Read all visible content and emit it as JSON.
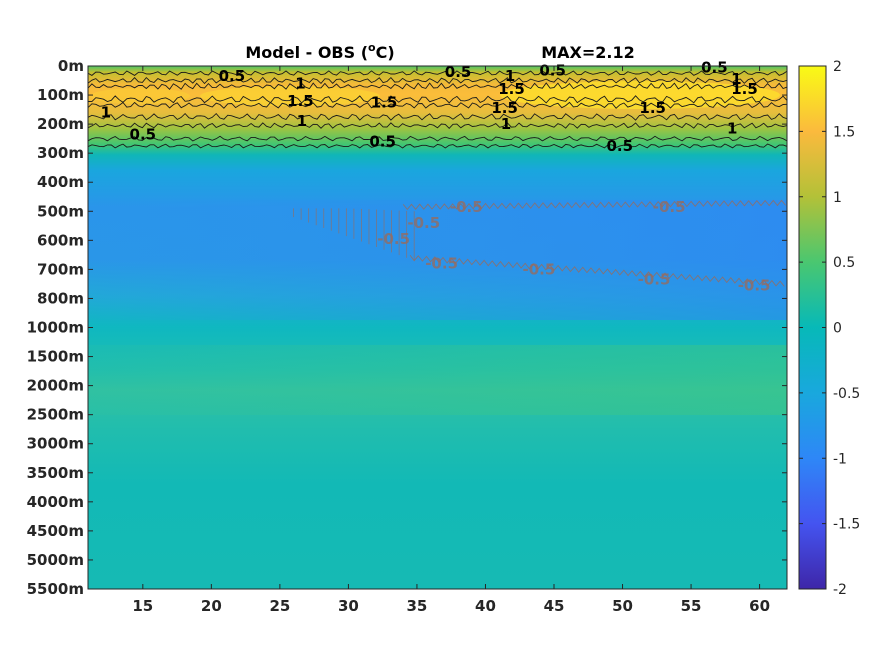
{
  "chart_data": {
    "type": "heatmap",
    "title": "Model - OBS (",
    "title_unit": "o",
    "title_unit_suffix": "C)",
    "annotation": "MAX=2.12",
    "xlabel": "",
    "ylabel": "",
    "x_ticks": [
      15,
      20,
      25,
      30,
      35,
      40,
      45,
      50,
      55,
      60
    ],
    "xlim": [
      11,
      62
    ],
    "y_levels": [
      "0m",
      "100m",
      "200m",
      "300m",
      "400m",
      "500m",
      "600m",
      "700m",
      "800m",
      "1000m",
      "1500m",
      "2000m",
      "2500m",
      "3000m",
      "3500m",
      "4000m",
      "4500m",
      "5000m",
      "5500m"
    ],
    "clim": [
      -2,
      2
    ],
    "colormap": "parula",
    "colorbar_ticks": [
      "2",
      "1.5",
      "1",
      "0.5",
      "0",
      "-0.5",
      "-1",
      "-1.5",
      "-2"
    ],
    "contour_levels": [
      -0.5,
      0.5,
      1,
      1.5
    ],
    "contour_labels_pos": [
      {
        "text": "0.5",
        "x": 21.5,
        "y": 0.35
      },
      {
        "text": "1",
        "x": 26.5,
        "y": 0.6
      },
      {
        "text": "0.5",
        "x": 38,
        "y": 0.2
      },
      {
        "text": "1",
        "x": 41.8,
        "y": 0.35
      },
      {
        "text": "0.5",
        "x": 44.9,
        "y": 0.15
      },
      {
        "text": "0.5",
        "x": 56.7,
        "y": 0.05
      },
      {
        "text": "1",
        "x": 58.3,
        "y": 0.45
      },
      {
        "text": "1.5",
        "x": 41.9,
        "y": 0.8
      },
      {
        "text": "1.5",
        "x": 58.9,
        "y": 0.8
      },
      {
        "text": "1.5",
        "x": 26.5,
        "y": 1.2
      },
      {
        "text": "1.5",
        "x": 32.6,
        "y": 1.25
      },
      {
        "text": "1.5",
        "x": 41.4,
        "y": 1.45
      },
      {
        "text": "1.5",
        "x": 52.2,
        "y": 1.45
      },
      {
        "text": "1",
        "x": 12.3,
        "y": 1.6
      },
      {
        "text": "1",
        "x": 26.6,
        "y": 1.9
      },
      {
        "text": "1",
        "x": 41.5,
        "y": 2.0
      },
      {
        "text": "1",
        "x": 58.0,
        "y": 2.15
      },
      {
        "text": "0.5",
        "x": 15.0,
        "y": 2.35
      },
      {
        "text": "0.5",
        "x": 32.5,
        "y": 2.6
      },
      {
        "text": "0.5",
        "x": 49.8,
        "y": 2.75
      }
    ],
    "contour_labels_neg": [
      {
        "text": "-0.5",
        "x": 38.6,
        "y": 4.85
      },
      {
        "text": "-0.5",
        "x": 53.4,
        "y": 4.85
      },
      {
        "text": "-0.5",
        "x": 33.3,
        "y": 5.95
      },
      {
        "text": "-0.5",
        "x": 35.5,
        "y": 5.4
      },
      {
        "text": "-0.5",
        "x": 36.8,
        "y": 6.8
      },
      {
        "text": "-0.5",
        "x": 43.9,
        "y": 7.0
      },
      {
        "text": "-0.5",
        "x": 52.3,
        "y": 7.35
      },
      {
        "text": "-0.5",
        "x": 59.6,
        "y": 7.55
      }
    ]
  }
}
